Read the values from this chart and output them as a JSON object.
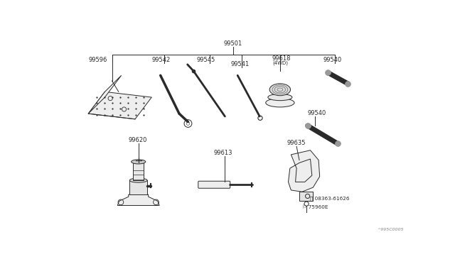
{
  "background_color": "#ffffff",
  "fig_width": 6.4,
  "fig_height": 3.72,
  "dpi": 100,
  "watermark": "^995C0005",
  "lw": 0.7,
  "color": "#2a2a2a",
  "font_size": 6.0
}
